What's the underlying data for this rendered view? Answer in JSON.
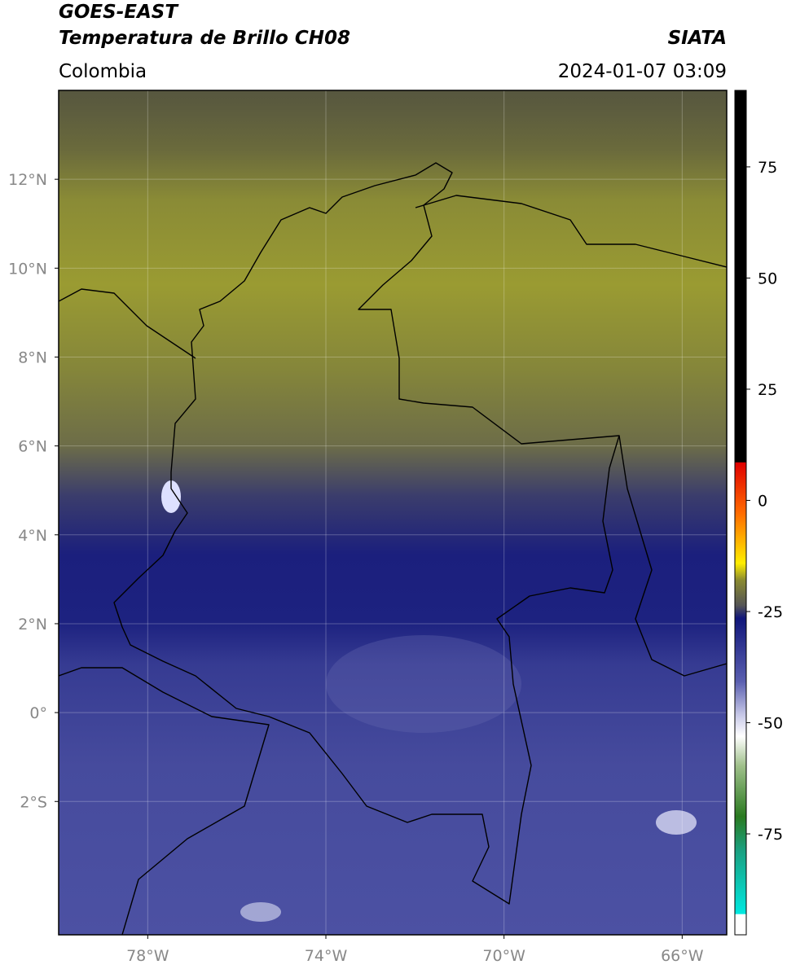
{
  "header": {
    "title": "GOES-EAST",
    "subtitle": "Temperatura de Brillo CH08",
    "region": "Colombia",
    "source": "SIATA",
    "datetime": "2024-01-07 03:09"
  },
  "map": {
    "lonlim": [
      -80,
      -65
    ],
    "latlim": [
      -5,
      14
    ],
    "lon_ticks": [
      {
        "value": -78,
        "label": "78°W"
      },
      {
        "value": -74,
        "label": "74°W"
      },
      {
        "value": -70,
        "label": "70°W"
      },
      {
        "value": -66,
        "label": "66°W"
      }
    ],
    "lat_ticks": [
      {
        "value": 12,
        "label": "12°N"
      },
      {
        "value": 10,
        "label": "10°N"
      },
      {
        "value": 8,
        "label": "8°N"
      },
      {
        "value": 6,
        "label": "6°N"
      },
      {
        "value": 4,
        "label": "4°N"
      },
      {
        "value": 2,
        "label": "2°N"
      },
      {
        "value": 0,
        "label": "0°"
      },
      {
        "value": -2,
        "label": "2°S"
      }
    ]
  },
  "colorbar": {
    "lim": [
      -97.7,
      92.2
    ],
    "ticks": [
      75,
      50,
      25,
      0,
      -25,
      -50,
      -75
    ]
  }
}
